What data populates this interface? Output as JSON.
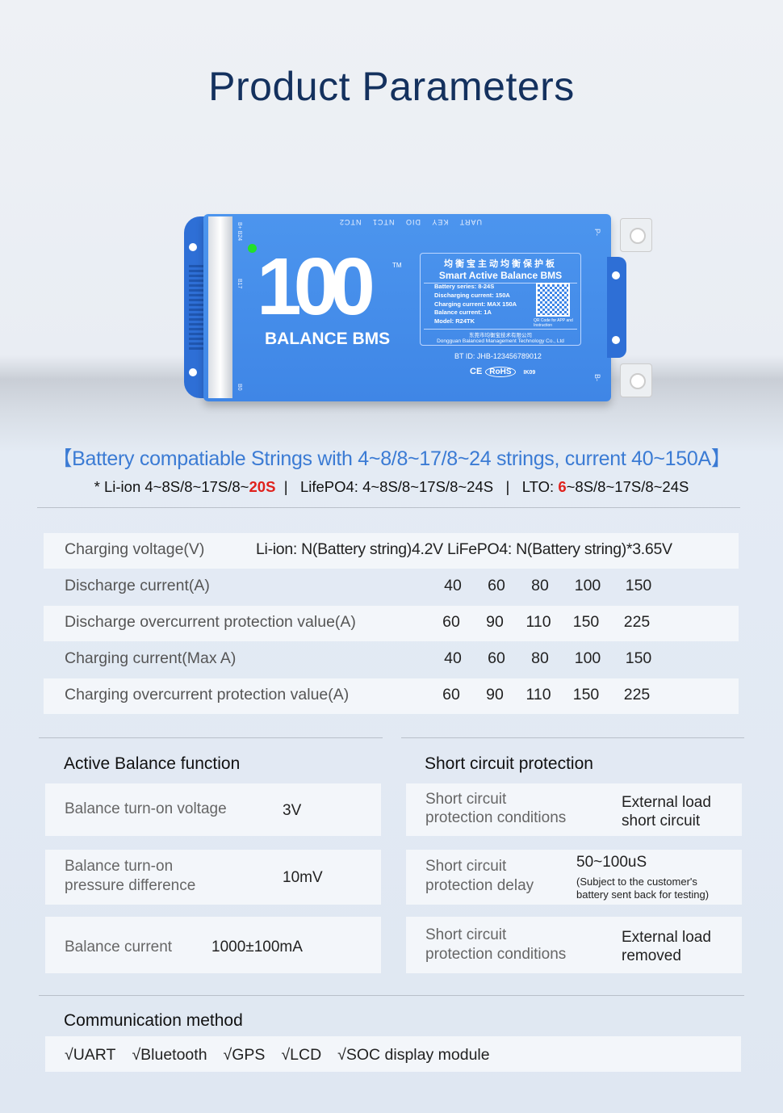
{
  "title": "Product Parameters",
  "device": {
    "pins": "UART KEY DIO NTC1 NTC2",
    "side_labels": [
      "B+ B24",
      "B17",
      "B0"
    ],
    "terminals": [
      "P-",
      "B-"
    ],
    "logo_number": "100",
    "logo_text": "BALANCE BMS",
    "trademark": "TM",
    "label_cn": "均衡宝主动均衡保护板",
    "label_en": "Smart Active Balance BMS",
    "specs": [
      "Battery series: 8-24S",
      "Discharging current: 150A",
      "Charging current: MAX 150A",
      "Balance current: 1A",
      "Model: R24TK"
    ],
    "qr_caption": "QR Code for APP and Instruction",
    "company_cn": "东莞市均衡宝技术有限公司",
    "company_en": "Dongguan Balanced Management Technology Co., Ltd",
    "bt_id": "BT ID: JHB-123456789012",
    "ce": "CE",
    "rohs": "RoHS",
    "ik": "IK09",
    "colors": {
      "body": "#3f86e6",
      "caps": "#2e6fd6",
      "led": "#22e02a"
    }
  },
  "compat_heading": "【Battery compatiable Strings with 4~8/8~17/8~24 strings, current 40~150A】",
  "strings": {
    "liion_prefix": "* Li-ion 4~8S/8~17S/8~",
    "liion_red": "20S",
    "sep1": "  |   ",
    "lifepo4": "LifePO4: 4~8S/8~17S/8~24S",
    "sep2": "   |   ",
    "lto_prefix": "LTO: ",
    "lto_red": "6",
    "lto_suffix": "~8S/8~17S/8~24S",
    "highlight_color": "#e0211c"
  },
  "params": {
    "charging_voltage": {
      "label": "Charging voltage(V)",
      "value": "Li-ion: N(Battery string)4.2V LiFePO4: N(Battery string)*3.65V"
    },
    "rows": [
      {
        "label": "Discharge current(A)",
        "values": [
          "40",
          "60",
          "80",
          "100",
          "150"
        ]
      },
      {
        "label": "Discharge overcurrent protection value(A)",
        "values": [
          "60",
          "90",
          "110",
          "150",
          "225"
        ]
      },
      {
        "label": "Charging current(Max A)",
        "values": [
          "40",
          "60",
          "80",
          "100",
          "150"
        ]
      },
      {
        "label": "Charging overcurrent protection value(A)",
        "values": [
          "60",
          "90",
          "110",
          "150",
          "225"
        ]
      }
    ]
  },
  "balance": {
    "heading": "Active Balance function",
    "items": [
      {
        "label": "Balance turn-on voltage",
        "value": "3V"
      },
      {
        "label1": "Balance turn-on",
        "label2": "pressure difference",
        "value": "10mV"
      },
      {
        "label": "Balance current",
        "value": "1000±100mA"
      }
    ]
  },
  "short": {
    "heading": "Short circuit protection",
    "items": [
      {
        "label1": "Short circuit",
        "label2": "protection conditions",
        "value1": "External load",
        "value2": "short circuit"
      },
      {
        "label1": "Short circuit",
        "label2": "protection delay",
        "value1": "50~100uS",
        "note1": "(Subject to the customer's",
        "note2": "battery sent back for testing)"
      },
      {
        "label1": "Short circuit",
        "label2": "protection conditions",
        "value1": "External load",
        "value2": "removed"
      }
    ]
  },
  "comm": {
    "heading": "Communication method",
    "items": [
      "√UART",
      "√Bluetooth",
      "√GPS",
      "√LCD",
      "√SOC display module"
    ]
  }
}
